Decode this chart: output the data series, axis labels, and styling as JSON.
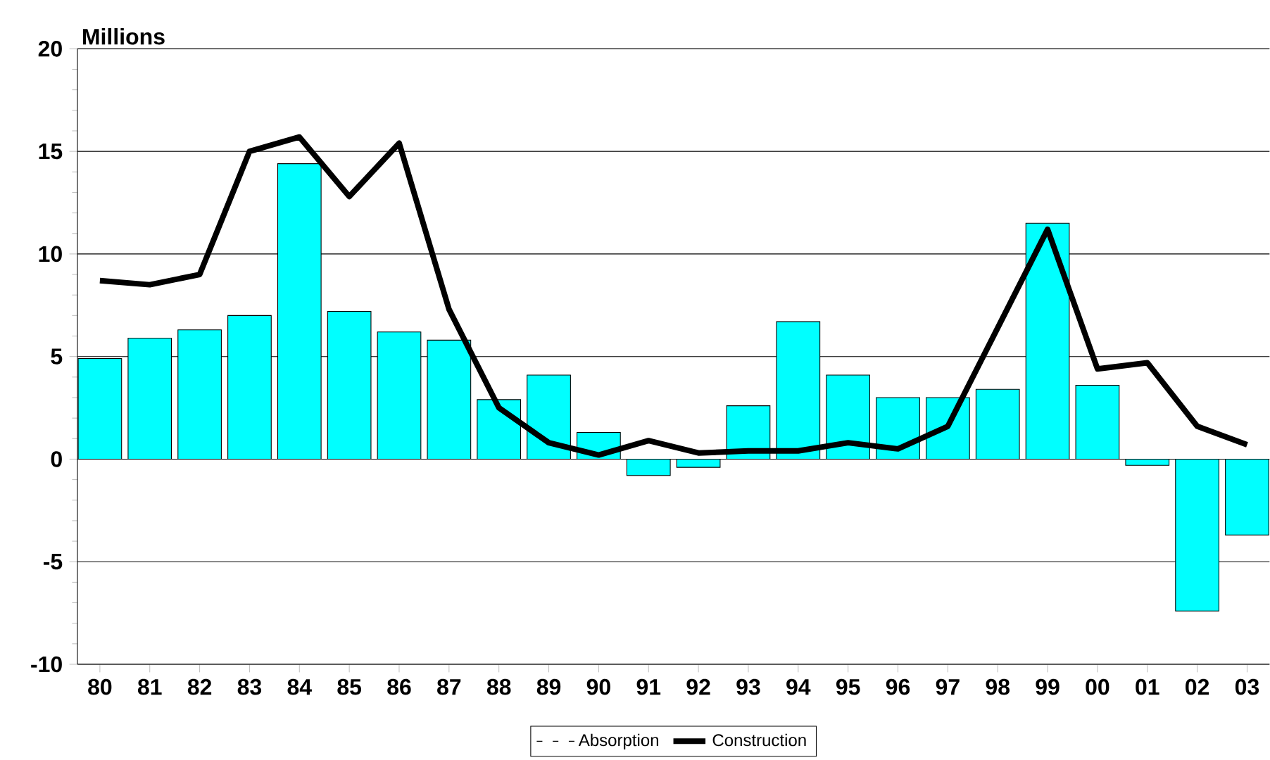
{
  "chart_data": {
    "type": "bar",
    "ylabel": "Millions",
    "categories": [
      "80",
      "81",
      "82",
      "83",
      "84",
      "85",
      "86",
      "87",
      "88",
      "89",
      "90",
      "91",
      "92",
      "93",
      "94",
      "95",
      "96",
      "97",
      "98",
      "99",
      "00",
      "01",
      "02",
      "03"
    ],
    "series": [
      {
        "name": "Absorption",
        "color": "#00ffff",
        "values": [
          4.9,
          5.9,
          6.3,
          7.0,
          14.4,
          7.2,
          6.2,
          5.8,
          2.9,
          4.1,
          1.3,
          -0.8,
          -0.4,
          2.6,
          6.7,
          4.1,
          3.0,
          3.0,
          3.4,
          11.5,
          3.6,
          -0.3,
          -7.4,
          -3.7
        ]
      },
      {
        "name": "Construction",
        "type": "line",
        "color": "#000000",
        "marker": "none",
        "values": [
          8.7,
          8.5,
          9.0,
          15.0,
          15.7,
          12.8,
          15.4,
          7.3,
          2.5,
          0.8,
          0.2,
          0.9,
          0.3,
          0.4,
          0.4,
          0.8,
          0.5,
          1.6,
          6.4,
          11.2,
          4.4,
          4.7,
          1.6,
          0.7
        ]
      }
    ],
    "ylim": [
      -10,
      20
    ],
    "yticks": [
      -10,
      -5,
      0,
      5,
      10,
      15,
      20
    ],
    "grid": "y",
    "legend": "bottom"
  }
}
